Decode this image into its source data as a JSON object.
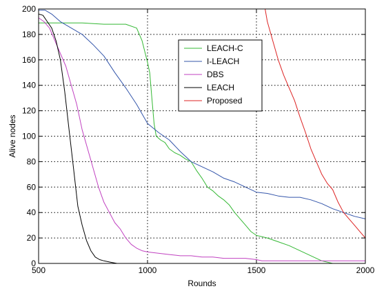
{
  "chart_data": {
    "type": "line",
    "title": "",
    "xlabel": "Rounds",
    "ylabel": "Alive nodes",
    "xlim": [
      500,
      2000
    ],
    "ylim": [
      0,
      200
    ],
    "xticks": [
      500,
      1000,
      1500,
      2000
    ],
    "yticks": [
      0,
      20,
      40,
      60,
      80,
      100,
      120,
      140,
      160,
      180,
      200
    ],
    "grid": true,
    "legend_position": "top-right",
    "series": [
      {
        "name": "LEACH-C",
        "color": "#33b833",
        "points": [
          [
            500,
            189
          ],
          [
            600,
            189
          ],
          [
            700,
            189
          ],
          [
            800,
            188
          ],
          [
            900,
            188
          ],
          [
            950,
            185
          ],
          [
            975,
            175
          ],
          [
            1000,
            158
          ],
          [
            1010,
            150
          ],
          [
            1020,
            130
          ],
          [
            1030,
            110
          ],
          [
            1040,
            100
          ],
          [
            1060,
            97
          ],
          [
            1080,
            95
          ],
          [
            1100,
            90
          ],
          [
            1125,
            87
          ],
          [
            1150,
            85
          ],
          [
            1175,
            82
          ],
          [
            1200,
            80
          ],
          [
            1225,
            73
          ],
          [
            1250,
            67
          ],
          [
            1275,
            60
          ],
          [
            1300,
            57
          ],
          [
            1325,
            53
          ],
          [
            1350,
            50
          ],
          [
            1375,
            46
          ],
          [
            1400,
            40
          ],
          [
            1425,
            35
          ],
          [
            1450,
            30
          ],
          [
            1475,
            25
          ],
          [
            1500,
            22
          ],
          [
            1550,
            20
          ],
          [
            1600,
            17
          ],
          [
            1650,
            14
          ],
          [
            1700,
            10
          ],
          [
            1750,
            6
          ],
          [
            1800,
            2
          ],
          [
            1850,
            0
          ],
          [
            2000,
            0
          ]
        ]
      },
      {
        "name": "I-LEACH",
        "color": "#3355aa",
        "points": [
          [
            500,
            199
          ],
          [
            530,
            199
          ],
          [
            560,
            196
          ],
          [
            600,
            190
          ],
          [
            650,
            185
          ],
          [
            700,
            180
          ],
          [
            750,
            172
          ],
          [
            800,
            163
          ],
          [
            850,
            150
          ],
          [
            900,
            138
          ],
          [
            950,
            125
          ],
          [
            1000,
            110
          ],
          [
            1050,
            103
          ],
          [
            1100,
            97
          ],
          [
            1150,
            88
          ],
          [
            1200,
            80
          ],
          [
            1250,
            76
          ],
          [
            1300,
            72
          ],
          [
            1350,
            67
          ],
          [
            1400,
            64
          ],
          [
            1450,
            60
          ],
          [
            1500,
            56
          ],
          [
            1550,
            55
          ],
          [
            1600,
            53
          ],
          [
            1650,
            52
          ],
          [
            1700,
            52
          ],
          [
            1750,
            50
          ],
          [
            1800,
            47
          ],
          [
            1850,
            43
          ],
          [
            1900,
            40
          ],
          [
            1950,
            37
          ],
          [
            2000,
            35
          ]
        ]
      },
      {
        "name": "DBS",
        "color": "#c040c0",
        "points": [
          [
            500,
            193
          ],
          [
            525,
            190
          ],
          [
            550,
            185
          ],
          [
            575,
            175
          ],
          [
            600,
            165
          ],
          [
            625,
            155
          ],
          [
            650,
            140
          ],
          [
            675,
            125
          ],
          [
            700,
            105
          ],
          [
            725,
            90
          ],
          [
            750,
            75
          ],
          [
            775,
            60
          ],
          [
            800,
            48
          ],
          [
            825,
            40
          ],
          [
            850,
            32
          ],
          [
            875,
            27
          ],
          [
            900,
            20
          ],
          [
            925,
            15
          ],
          [
            950,
            12
          ],
          [
            975,
            10
          ],
          [
            1000,
            9
          ],
          [
            1050,
            8
          ],
          [
            1100,
            7
          ],
          [
            1150,
            6
          ],
          [
            1200,
            6
          ],
          [
            1250,
            5
          ],
          [
            1300,
            5
          ],
          [
            1350,
            4
          ],
          [
            1400,
            4
          ],
          [
            1450,
            4
          ],
          [
            1500,
            3
          ],
          [
            1525,
            2
          ],
          [
            1600,
            2
          ],
          [
            1700,
            2
          ],
          [
            1800,
            2
          ],
          [
            1900,
            2
          ],
          [
            1950,
            2
          ],
          [
            2000,
            2
          ]
        ]
      },
      {
        "name": "LEACH",
        "color": "#000000",
        "points": [
          [
            500,
            196
          ],
          [
            520,
            195
          ],
          [
            540,
            190
          ],
          [
            560,
            185
          ],
          [
            580,
            175
          ],
          [
            600,
            160
          ],
          [
            620,
            135
          ],
          [
            640,
            105
          ],
          [
            660,
            75
          ],
          [
            680,
            45
          ],
          [
            700,
            30
          ],
          [
            720,
            18
          ],
          [
            740,
            10
          ],
          [
            760,
            5
          ],
          [
            780,
            3
          ],
          [
            800,
            2
          ],
          [
            830,
            1
          ],
          [
            860,
            0
          ],
          [
            880,
            0
          ]
        ]
      },
      {
        "name": "Proposed",
        "color": "#dd2222",
        "points": [
          [
            1540,
            200
          ],
          [
            1550,
            190
          ],
          [
            1575,
            175
          ],
          [
            1600,
            160
          ],
          [
            1625,
            148
          ],
          [
            1650,
            138
          ],
          [
            1675,
            128
          ],
          [
            1700,
            115
          ],
          [
            1725,
            103
          ],
          [
            1750,
            90
          ],
          [
            1775,
            80
          ],
          [
            1800,
            70
          ],
          [
            1825,
            63
          ],
          [
            1850,
            58
          ],
          [
            1875,
            48
          ],
          [
            1900,
            40
          ],
          [
            1925,
            35
          ],
          [
            1950,
            30
          ],
          [
            1975,
            25
          ],
          [
            2000,
            20
          ]
        ]
      }
    ]
  }
}
